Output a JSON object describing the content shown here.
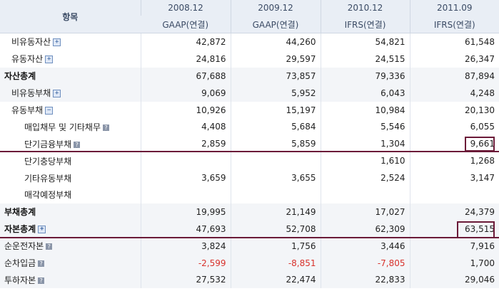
{
  "header": {
    "label": "항목",
    "years": [
      "2008.12",
      "2009.12",
      "2010.12",
      "2011.09"
    ],
    "standards": [
      "GAAP(연결)",
      "GAAP(연결)",
      "IFRS(연결)",
      "IFRS(연결)"
    ]
  },
  "rows": [
    {
      "label": "비유동자산",
      "icon": "expand-plus-icon",
      "values": [
        "42,872",
        "44,260",
        "54,821",
        "61,548"
      ]
    },
    {
      "label": "유동자산",
      "icon": "expand-plus-icon",
      "values": [
        "24,816",
        "29,597",
        "24,515",
        "26,347"
      ]
    },
    {
      "label": "자산총계",
      "icon": "",
      "values": [
        "67,688",
        "73,857",
        "79,336",
        "87,894"
      ]
    },
    {
      "label": "비유동부채",
      "icon": "expand-plus-icon",
      "values": [
        "9,069",
        "5,952",
        "6,043",
        "4,248"
      ]
    },
    {
      "label": "유동부채",
      "icon": "collapse-minus-icon",
      "values": [
        "10,926",
        "15,197",
        "10,984",
        "20,130"
      ]
    },
    {
      "label": "매입채무 및 기타채무",
      "icon": "help-icon",
      "values": [
        "4,408",
        "5,684",
        "5,546",
        "6,055"
      ]
    },
    {
      "label": "단기금융부채",
      "icon": "help-icon",
      "values": [
        "2,859",
        "5,859",
        "1,304",
        "9,661"
      ]
    },
    {
      "label": "단기충당부채",
      "icon": "",
      "values": [
        "",
        "",
        "1,610",
        "1,268"
      ]
    },
    {
      "label": "기타유동부채",
      "icon": "",
      "values": [
        "3,659",
        "3,655",
        "2,524",
        "3,147"
      ]
    },
    {
      "label": "매각예정부채",
      "icon": "",
      "values": [
        "",
        "",
        "",
        ""
      ]
    },
    {
      "label": "부채총계",
      "icon": "",
      "values": [
        "19,995",
        "21,149",
        "17,027",
        "24,379"
      ]
    },
    {
      "label": "자본총계",
      "icon": "expand-plus-icon",
      "values": [
        "47,693",
        "52,708",
        "62,309",
        "63,515"
      ]
    },
    {
      "label": "순운전자본",
      "icon": "help-icon",
      "values": [
        "3,824",
        "1,756",
        "3,446",
        "7,916"
      ]
    },
    {
      "label": "순차입금",
      "icon": "help-icon",
      "values": [
        "-2,599",
        "-8,851",
        "-7,805",
        "1,700"
      ]
    },
    {
      "label": "투하자본",
      "icon": "help-icon",
      "values": [
        "27,532",
        "22,474",
        "22,833",
        "29,046"
      ]
    }
  ],
  "icons": {
    "plus": "+",
    "minus": "−",
    "help": "?"
  },
  "colors": {
    "header_bg": "#e9eef5",
    "negative": "#d8312b",
    "highlight": "#6b1a38"
  }
}
